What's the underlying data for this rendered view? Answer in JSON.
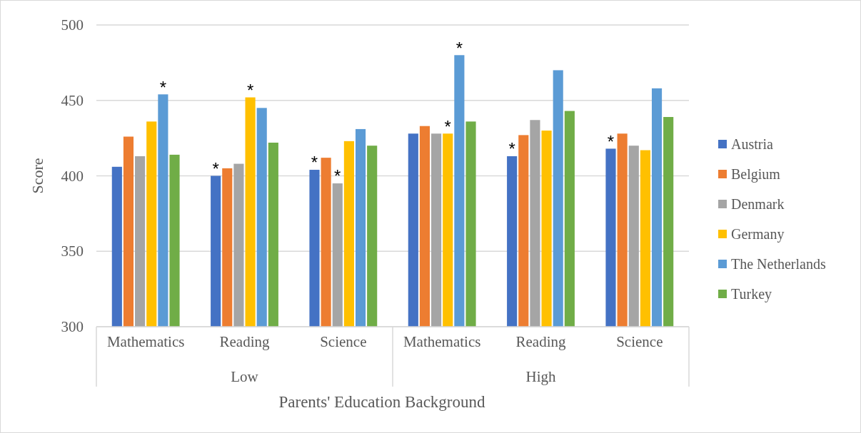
{
  "chart_data": {
    "type": "bar",
    "xlabel": "Parents' Education Background",
    "ylabel": "Score",
    "categories": [
      "Mathematics",
      "Reading",
      "Science",
      "Mathematics",
      "Reading",
      "Science"
    ],
    "annotations": [
      "Low",
      "High"
    ],
    "series": [
      {
        "name": "Austria",
        "color": "#4472c4",
        "values": [
          406,
          400,
          404,
          428,
          413,
          418
        ],
        "value_labels": [
          null,
          "*",
          "*",
          null,
          "*",
          "*"
        ]
      },
      {
        "name": "Belgium",
        "color": "#ed7d31",
        "values": [
          426,
          405,
          412,
          433,
          427,
          428
        ],
        "value_labels": [
          null,
          null,
          null,
          null,
          null,
          null
        ]
      },
      {
        "name": "Denmark",
        "color": "#a5a5a5",
        "values": [
          413,
          408,
          395,
          428,
          437,
          420
        ],
        "value_labels": [
          null,
          null,
          "*",
          null,
          null,
          null
        ]
      },
      {
        "name": "Germany",
        "color": "#ffc000",
        "values": [
          436,
          452,
          423,
          428,
          430,
          417
        ],
        "value_labels": [
          null,
          "*",
          null,
          "*",
          null,
          null
        ]
      },
      {
        "name": "The Netherlands",
        "color": "#5b9bd5",
        "values": [
          454,
          445,
          431,
          480,
          470,
          458
        ],
        "value_labels": [
          "*",
          null,
          null,
          "*",
          null,
          null
        ]
      },
      {
        "name": "Turkey",
        "color": "#70ad47",
        "values": [
          414,
          422,
          420,
          436,
          443,
          439
        ],
        "value_labels": [
          null,
          null,
          null,
          null,
          null,
          null
        ]
      }
    ],
    "ylim": [
      300,
      500
    ],
    "yticks": [
      300,
      350,
      400,
      450,
      500
    ],
    "grid": "y",
    "legend": "right"
  }
}
